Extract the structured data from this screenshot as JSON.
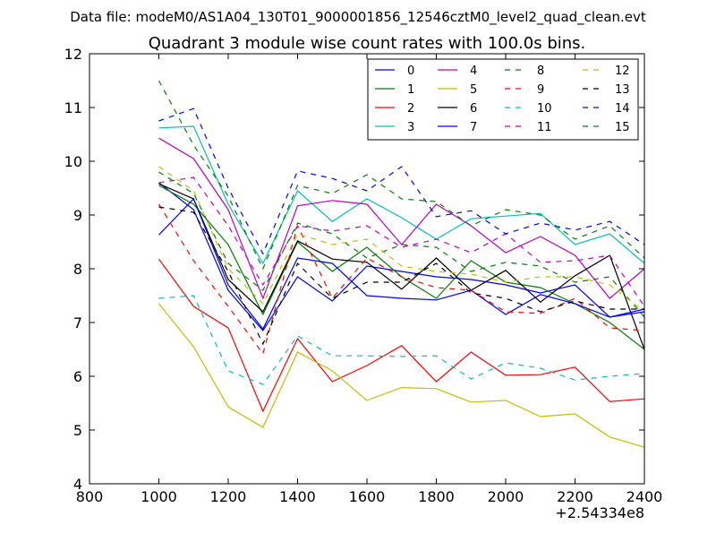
{
  "chart_data": {
    "type": "line",
    "suptitle": "Data file: modeM0/AS1A04_130T01_9000001856_12546cztM0_level2_quad_clean.evt",
    "title": "Quadrant 3 module wise count rates with 100.0s bins.",
    "xlabel": "",
    "ylabel": "",
    "x_offset_label": "+2.54334e8",
    "xlim": [
      800,
      2400
    ],
    "ylim": [
      4,
      12
    ],
    "xticks": [
      800,
      1000,
      1200,
      1400,
      1600,
      1800,
      2000,
      2200,
      2400
    ],
    "yticks": [
      4,
      5,
      6,
      7,
      8,
      9,
      10,
      11,
      12
    ],
    "x": [
      1000,
      1100,
      1200,
      1300,
      1400,
      1500,
      1600,
      1700,
      1800,
      1900,
      2000,
      2100,
      2200,
      2300,
      2400
    ],
    "legend_position": "upper-right",
    "series": [
      {
        "name": "0",
        "color": "#0000ff",
        "style": "solid",
        "values": [
          9.6,
          9.1,
          7.6,
          6.85,
          7.85,
          7.4,
          8.05,
          7.95,
          7.85,
          7.8,
          7.7,
          7.55,
          7.7,
          7.1,
          7.2
        ]
      },
      {
        "name": "1",
        "color": "#008000",
        "style": "solid",
        "values": [
          9.55,
          9.2,
          8.45,
          7.15,
          8.5,
          7.95,
          8.4,
          7.85,
          7.45,
          8.15,
          7.75,
          7.65,
          7.35,
          7.0,
          6.5
        ]
      },
      {
        "name": "2",
        "color": "#ff0000",
        "style": "solid",
        "values": [
          8.18,
          7.3,
          6.9,
          5.35,
          6.7,
          5.9,
          6.2,
          6.57,
          5.9,
          6.45,
          6.02,
          6.03,
          6.17,
          5.53,
          5.58
        ]
      },
      {
        "name": "3",
        "color": "#00bfbf",
        "style": "solid",
        "values": [
          10.62,
          10.65,
          9.2,
          8.1,
          9.45,
          8.88,
          9.3,
          8.95,
          8.55,
          8.93,
          8.98,
          9.03,
          8.45,
          8.65,
          8.1
        ]
      },
      {
        "name": "4",
        "color": "#bf00bf",
        "style": "solid",
        "values": [
          10.43,
          10.05,
          9.1,
          7.45,
          9.17,
          9.27,
          9.2,
          8.45,
          9.2,
          8.8,
          8.3,
          8.6,
          8.25,
          7.45,
          8.0
        ]
      },
      {
        "name": "5",
        "color": "#bfbf00",
        "style": "solid",
        "values": [
          7.35,
          6.55,
          5.43,
          5.05,
          6.45,
          6.1,
          5.55,
          5.79,
          5.77,
          5.52,
          5.55,
          5.25,
          5.3,
          4.87,
          4.68
        ]
      },
      {
        "name": "6",
        "color": "#000000",
        "style": "solid",
        "values": [
          9.58,
          9.3,
          7.8,
          7.2,
          8.52,
          8.18,
          8.12,
          7.62,
          8.2,
          7.6,
          7.97,
          7.38,
          7.87,
          8.25,
          6.5
        ]
      },
      {
        "name": "7",
        "color": "#0000ff",
        "style": "solid",
        "values": [
          8.63,
          9.3,
          7.7,
          6.88,
          8.2,
          8.1,
          7.5,
          7.45,
          7.42,
          7.6,
          7.15,
          7.52,
          7.35,
          7.1,
          7.25
        ]
      },
      {
        "name": "8",
        "color": "#008000",
        "style": "dashed",
        "values": [
          9.8,
          9.4,
          8.1,
          7.6,
          8.85,
          8.65,
          8.2,
          8.45,
          8.4,
          7.95,
          8.12,
          8.05,
          7.75,
          7.85,
          7.1
        ]
      },
      {
        "name": "9",
        "color": "#ff0000",
        "style": "dashed",
        "values": [
          9.2,
          8.15,
          7.3,
          6.42,
          8.8,
          7.45,
          8.2,
          7.85,
          7.65,
          7.6,
          7.2,
          7.17,
          7.45,
          6.9,
          6.85
        ]
      },
      {
        "name": "10",
        "color": "#00bfbf",
        "style": "dashed",
        "values": [
          7.45,
          7.5,
          6.1,
          5.85,
          6.75,
          6.38,
          6.38,
          6.37,
          6.38,
          5.95,
          6.25,
          6.15,
          5.93,
          6.0,
          6.05
        ]
      },
      {
        "name": "11",
        "color": "#bf00bf",
        "style": "dashed",
        "values": [
          9.6,
          9.7,
          8.8,
          7.7,
          8.8,
          8.7,
          8.8,
          8.4,
          8.55,
          8.3,
          8.65,
          8.12,
          8.15,
          8.25,
          7.3
        ]
      },
      {
        "name": "12",
        "color": "#bfbf00",
        "style": "dashed",
        "values": [
          9.9,
          9.45,
          8.0,
          7.35,
          8.65,
          8.45,
          8.55,
          8.05,
          7.95,
          7.9,
          7.75,
          7.85,
          7.85,
          7.7,
          7.2
        ]
      },
      {
        "name": "13",
        "color": "#000000",
        "style": "dashed",
        "values": [
          9.15,
          9.05,
          7.95,
          6.6,
          8.1,
          7.45,
          7.75,
          7.75,
          8.1,
          7.55,
          7.45,
          7.2,
          7.4,
          7.25,
          7.25
        ]
      },
      {
        "name": "14",
        "color": "#0000ff",
        "style": "dashed",
        "values": [
          10.75,
          10.98,
          9.5,
          8.28,
          9.82,
          9.68,
          9.45,
          9.9,
          8.97,
          9.08,
          8.65,
          8.85,
          8.72,
          8.88,
          8.45
        ]
      },
      {
        "name": "15",
        "color": "#008000",
        "style": "dashed",
        "values": [
          11.5,
          10.3,
          9.35,
          8.0,
          9.55,
          9.4,
          9.75,
          9.3,
          9.25,
          8.8,
          9.1,
          9.0,
          8.55,
          8.8,
          8.2
        ]
      }
    ]
  }
}
